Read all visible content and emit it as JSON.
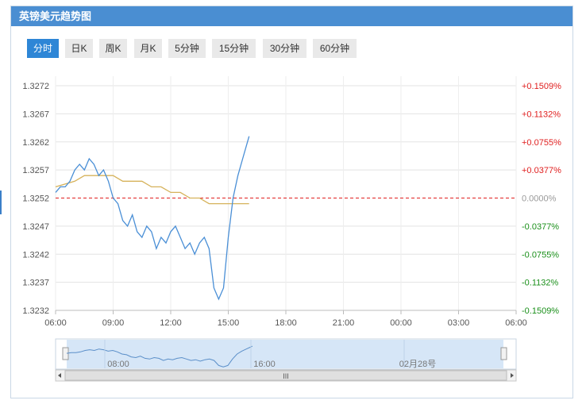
{
  "header": {
    "title": "英镑美元趋势图"
  },
  "tabs": [
    {
      "label": "分时",
      "active": true
    },
    {
      "label": "日K",
      "active": false
    },
    {
      "label": "周K",
      "active": false
    },
    {
      "label": "月K",
      "active": false
    },
    {
      "label": "5分钟",
      "active": false
    },
    {
      "label": "15分钟",
      "active": false
    },
    {
      "label": "30分钟",
      "active": false
    },
    {
      "label": "60分钟",
      "active": false
    }
  ],
  "colors": {
    "header": "#4a8ed2",
    "price_line": "#4a8fd6",
    "avg_line": "#d6b25a",
    "baseline": "#e02020",
    "up": "#e02020",
    "down": "#1a8f1a",
    "neutral": "#999999"
  },
  "chart_data": {
    "type": "line",
    "x_unit": "time",
    "xlim": [
      "06:00",
      "06:00 (+1 day)"
    ],
    "ylim": [
      1.3232,
      1.3272
    ],
    "y_ticks": [
      "1.3272",
      "1.3267",
      "1.3262",
      "1.3257",
      "1.3252",
      "1.3247",
      "1.3242",
      "1.3237",
      "1.3232"
    ],
    "y2_ticks": [
      "+0.1509%",
      "+0.1132%",
      "+0.0755%",
      "+0.0377%",
      "0.0000%",
      "-0.0377%",
      "-0.0755%",
      "-0.1132%",
      "-0.1509%"
    ],
    "x_ticks": [
      "06:00",
      "09:00",
      "12:00",
      "15:00",
      "18:00",
      "21:00",
      "00:00",
      "03:00",
      "06:00"
    ],
    "reference_price": 1.3252,
    "grid": true,
    "series": [
      {
        "x": [
          "06:00",
          "06:15",
          "06:30",
          "06:45",
          "07:00",
          "07:15",
          "07:30",
          "07:45",
          "08:00",
          "08:15",
          "08:30",
          "08:45",
          "09:00",
          "09:15",
          "09:30",
          "09:45",
          "10:00",
          "10:15",
          "10:30",
          "10:45",
          "11:00",
          "11:15",
          "11:30",
          "11:45",
          "12:00",
          "12:15",
          "12:30",
          "12:45",
          "13:00",
          "13:15",
          "13:30",
          "13:45",
          "14:00",
          "14:15",
          "14:30",
          "14:45",
          "15:00",
          "15:15",
          "15:30",
          "15:45",
          "16:00",
          "16:05"
        ],
        "values": [
          1.3253,
          1.3254,
          1.3254,
          1.3255,
          1.3257,
          1.3258,
          1.3257,
          1.3259,
          1.3258,
          1.3256,
          1.3257,
          1.3255,
          1.3252,
          1.3251,
          1.3248,
          1.3247,
          1.3249,
          1.3246,
          1.3245,
          1.3247,
          1.3246,
          1.3243,
          1.3245,
          1.3244,
          1.3246,
          1.3247,
          1.3245,
          1.3243,
          1.3244,
          1.3242,
          1.3244,
          1.3245,
          1.3243,
          1.3236,
          1.3234,
          1.3236,
          1.3245,
          1.3252,
          1.3256,
          1.3259,
          1.3262,
          1.3263
        ]
      },
      {
        "x": [
          "06:00",
          "07:00",
          "07:30",
          "08:00",
          "08:30",
          "09:00",
          "09:30",
          "10:00",
          "10:30",
          "11:00",
          "11:30",
          "12:00",
          "12:30",
          "13:00",
          "13:30",
          "14:00",
          "14:30",
          "15:00",
          "15:30",
          "16:00",
          "16:05"
        ],
        "values": [
          1.3254,
          1.3255,
          1.3256,
          1.3256,
          1.3256,
          1.3256,
          1.3255,
          1.3255,
          1.3255,
          1.3254,
          1.3254,
          1.3253,
          1.3253,
          1.3252,
          1.3252,
          1.3251,
          1.3251,
          1.3251,
          1.3251,
          1.3251,
          1.3251
        ]
      }
    ]
  },
  "navigator": {
    "labels": [
      "08:00",
      "16:00",
      "02月28号"
    ],
    "scrollbar_glyph": "III"
  }
}
